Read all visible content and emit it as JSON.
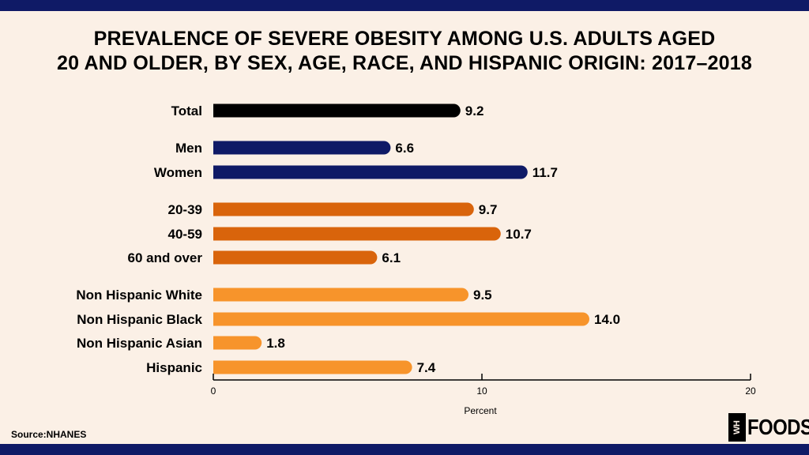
{
  "title": "PREVALENCE OF SEVERE OBESITY AMONG U.S. ADULTS AGED 20 AND OLDER, BY SEX, AGE, RACE, AND HISPANIC ORIGIN: 2017–2018",
  "source": "Source:NHANES",
  "logo": {
    "mark": "WH",
    "text": "FOODS"
  },
  "colors": {
    "background": "#fbf0e6",
    "band": "#0f1a66",
    "total": "#000000",
    "sex": "#0f1a66",
    "age": "#d9640b",
    "race": "#f7942b"
  },
  "chart_data": {
    "type": "bar",
    "orientation": "horizontal",
    "categories": [
      "Total",
      "Men",
      "Women",
      "20-39",
      "40-59",
      "60 and over",
      "Non Hispanic White",
      "Non Hispanic Black",
      "Non Hispanic Asian",
      "Hispanic"
    ],
    "values": [
      9.2,
      6.6,
      11.7,
      9.7,
      10.7,
      6.1,
      9.5,
      14.0,
      1.8,
      7.4
    ],
    "value_labels": [
      "9.2",
      "6.6",
      "11.7",
      "9.7",
      "10.7",
      "6.1",
      "9.5",
      "14.0",
      "1.8",
      "7.4"
    ],
    "groups": [
      "total",
      "sex",
      "sex",
      "age",
      "age",
      "age",
      "race",
      "race",
      "race",
      "race"
    ],
    "xlabel": "Percent",
    "ylabel": "",
    "xlim": [
      0,
      20
    ],
    "xticks": [
      0,
      10,
      20
    ],
    "xtick_labels": [
      "0",
      "10",
      "20"
    ],
    "grid": false
  }
}
